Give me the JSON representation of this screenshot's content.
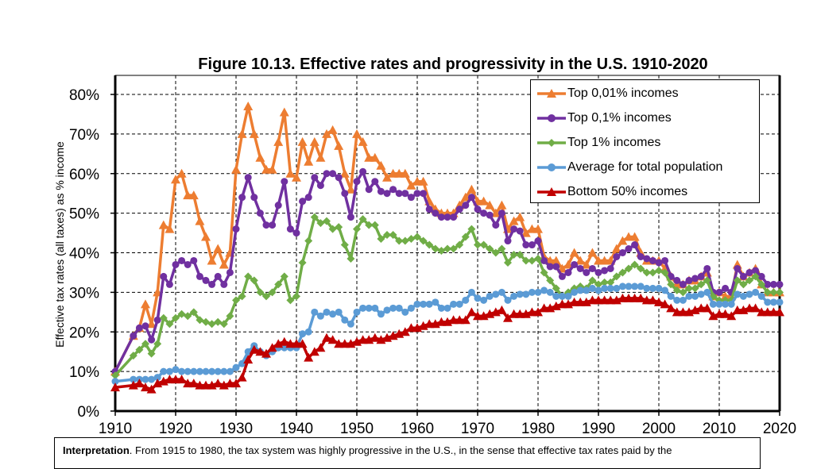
{
  "chart_data": {
    "type": "line",
    "title": "Figure 10.13. Effective rates and progressivity in the U.S. 1910-2020",
    "xlabel": "",
    "ylabel": "Effective tax rates (all taxes) as % income",
    "xlim": [
      1910,
      2020
    ],
    "ylim": [
      0,
      85
    ],
    "xticks": [
      "1910",
      "1920",
      "1930",
      "1940",
      "1950",
      "1960",
      "1970",
      "1980",
      "1990",
      "2000",
      "2010",
      "2020"
    ],
    "yticks": [
      "0%",
      "10%",
      "20%",
      "30%",
      "40%",
      "50%",
      "60%",
      "70%",
      "80%"
    ],
    "grid": true,
    "legend_position": "top-right",
    "x": [
      1910,
      1913,
      1914,
      1915,
      1916,
      1917,
      1918,
      1919,
      1920,
      1921,
      1922,
      1923,
      1924,
      1925,
      1926,
      1927,
      1928,
      1929,
      1930,
      1931,
      1932,
      1933,
      1934,
      1935,
      1936,
      1937,
      1938,
      1939,
      1940,
      1941,
      1942,
      1943,
      1944,
      1945,
      1946,
      1947,
      1948,
      1949,
      1950,
      1951,
      1952,
      1953,
      1954,
      1955,
      1956,
      1957,
      1958,
      1959,
      1960,
      1961,
      1962,
      1963,
      1964,
      1965,
      1966,
      1967,
      1968,
      1969,
      1970,
      1971,
      1972,
      1973,
      1974,
      1975,
      1976,
      1977,
      1978,
      1979,
      1980,
      1981,
      1982,
      1983,
      1984,
      1985,
      1986,
      1987,
      1988,
      1989,
      1990,
      1991,
      1992,
      1993,
      1994,
      1995,
      1996,
      1997,
      1998,
      1999,
      2000,
      2001,
      2002,
      2003,
      2004,
      2005,
      2006,
      2007,
      2008,
      2009,
      2010,
      2011,
      2012,
      2013,
      2014,
      2015,
      2016,
      2017,
      2018,
      2019,
      2020
    ],
    "series": [
      {
        "name": "Top 0,01% incomes",
        "color": "#ED7D31",
        "marker": "triangle",
        "values": [
          10,
          19,
          21,
          27,
          22,
          30,
          47,
          46,
          58.5,
          60,
          54.5,
          54.5,
          48,
          44,
          38,
          41,
          37,
          40,
          61,
          70,
          77,
          70,
          64,
          61,
          61,
          68,
          75.5,
          60,
          59,
          68,
          63,
          68,
          64,
          70,
          71,
          67,
          60,
          56,
          70,
          68,
          64,
          64,
          62,
          59,
          60,
          60,
          60,
          57,
          58,
          58,
          53,
          51,
          50,
          50,
          50,
          52,
          54,
          56,
          53,
          53,
          52,
          50,
          52,
          46,
          48,
          49,
          45,
          46,
          46,
          39,
          38,
          38,
          36,
          37,
          40,
          38,
          37,
          40,
          38,
          38,
          38,
          41,
          43,
          44,
          44,
          40,
          38,
          38,
          38,
          36,
          34,
          32,
          32,
          33,
          33,
          34,
          35,
          29,
          30,
          29,
          29,
          37,
          34,
          35,
          36,
          32,
          30,
          30,
          30
        ]
      },
      {
        "name": "Top 0,1% incomes",
        "color": "#7030A0",
        "marker": "circle",
        "values": [
          10,
          19,
          21,
          21.5,
          18,
          23,
          34,
          32,
          37,
          38,
          37,
          38,
          34,
          33,
          32,
          34,
          32,
          35,
          46,
          54,
          59,
          54,
          50,
          47,
          47,
          52,
          58,
          46,
          45,
          53,
          54,
          59,
          57,
          60,
          60,
          59,
          55,
          49,
          58,
          60.5,
          56,
          58,
          55.5,
          55,
          56,
          55,
          55,
          54,
          55,
          55,
          51,
          50,
          49,
          49,
          49,
          51,
          52,
          54,
          51,
          50,
          49.5,
          47,
          50,
          43,
          46,
          45.5,
          42,
          42,
          43,
          38,
          36.5,
          36.5,
          34,
          35,
          37,
          36,
          35,
          36,
          35,
          35.5,
          36,
          39,
          40,
          41,
          42,
          39,
          38.5,
          38,
          37.5,
          38,
          34,
          33,
          32,
          33,
          33.5,
          34,
          36,
          30,
          30,
          31,
          30,
          36,
          34,
          35,
          35.5,
          34,
          32,
          32,
          32
        ]
      },
      {
        "name": "Top 1% incomes",
        "color": "#70AD47",
        "marker": "diamond",
        "values": [
          9,
          14,
          15.5,
          17,
          14.5,
          17,
          23.5,
          22,
          23.5,
          24.5,
          24,
          25,
          23,
          22.5,
          22,
          22.5,
          22,
          24,
          28,
          29,
          34,
          33,
          30,
          29,
          30,
          32,
          34,
          28,
          29,
          37.5,
          43,
          49,
          47.5,
          48,
          46,
          46.5,
          42,
          38.5,
          46,
          48.5,
          47,
          47,
          43.5,
          44.5,
          44.5,
          43,
          43,
          43.5,
          44,
          43,
          42,
          41,
          40.5,
          41,
          41,
          42,
          44,
          46,
          42,
          42,
          41,
          40,
          41,
          37.5,
          39.5,
          39.5,
          38,
          38,
          38.5,
          35,
          33,
          31,
          29,
          30,
          31,
          31.5,
          31,
          33,
          32,
          32.5,
          32.5,
          34,
          35,
          36,
          37,
          36,
          35,
          35,
          35.5,
          35,
          32,
          30.5,
          30,
          31,
          31,
          32,
          33,
          29,
          28,
          28,
          28,
          33,
          32,
          33,
          34,
          32,
          30,
          30,
          30
        ]
      },
      {
        "name": "Average for total population",
        "color": "#5B9BD5",
        "marker": "circle",
        "values": [
          7.5,
          8,
          8,
          8,
          8,
          8.5,
          10,
          10,
          10.5,
          10,
          10,
          10,
          10,
          10,
          10,
          10,
          10,
          10,
          11,
          12,
          15,
          16.5,
          15,
          14,
          15,
          16,
          16,
          16,
          16,
          19.5,
          20,
          25,
          24,
          25,
          24.5,
          25,
          23,
          22,
          25,
          26,
          26,
          26,
          24.5,
          25.5,
          26,
          26,
          25,
          26,
          27,
          27,
          27,
          27.5,
          26,
          26,
          27,
          27,
          28,
          30,
          28.5,
          28,
          29,
          29.5,
          30,
          28,
          29,
          29.5,
          29.5,
          30,
          30,
          30.5,
          30,
          29,
          29,
          29,
          30,
          30.5,
          30.5,
          31,
          30.5,
          31,
          31,
          31,
          31.5,
          31.5,
          31.5,
          31.5,
          31,
          31,
          31,
          30.5,
          29,
          28,
          28,
          29,
          29,
          29.5,
          30,
          27,
          27,
          27,
          27,
          29.5,
          29,
          29.5,
          30,
          29,
          27.5,
          27.5,
          27.5
        ]
      },
      {
        "name": "Bottom 50% incomes",
        "color": "#C00000",
        "marker": "triangle",
        "values": [
          6,
          6.5,
          7,
          6,
          5.5,
          7,
          7.5,
          8,
          8,
          8,
          7,
          7,
          6.5,
          6.5,
          6.5,
          7,
          6.5,
          7,
          7,
          8.5,
          13,
          15.5,
          15,
          14.5,
          16,
          17,
          17.5,
          17,
          17,
          17,
          13.5,
          15,
          16,
          18.5,
          18,
          17,
          17,
          17,
          17.5,
          18,
          18,
          18.5,
          18,
          18.5,
          19,
          19.5,
          20,
          21,
          21,
          21.5,
          22,
          22,
          22.5,
          22.5,
          23,
          23,
          23,
          25,
          24,
          24,
          24.5,
          25,
          25.5,
          23.5,
          24.5,
          24.5,
          24.5,
          25,
          25,
          26,
          26,
          26.5,
          27,
          27,
          27.5,
          27.5,
          27.5,
          28,
          28,
          28,
          28,
          28,
          28.5,
          28.5,
          28.5,
          28.5,
          28,
          28,
          27.5,
          27,
          26,
          25,
          25,
          25,
          25.5,
          26,
          26,
          24,
          24.5,
          24.5,
          24,
          25.5,
          25.5,
          26,
          26,
          25,
          25,
          25,
          25
        ]
      }
    ]
  },
  "interpretation": {
    "label": "Interpretation",
    "text": ". From 1915 to 1980, the tax system was highly progressive in the U.S., in the sense that effective tax rates paid by the"
  }
}
